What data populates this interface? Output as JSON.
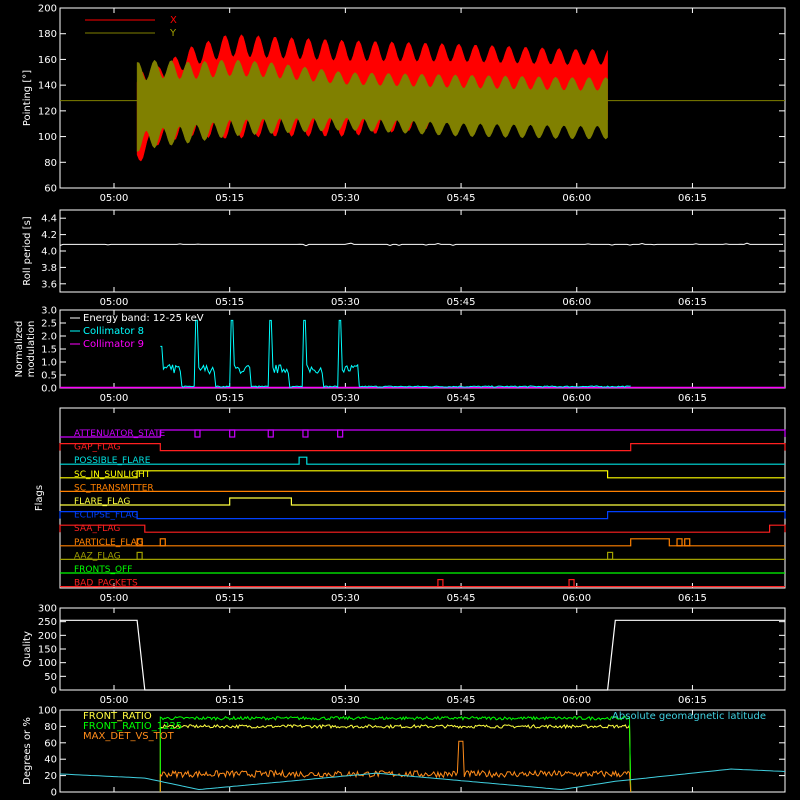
{
  "colors": {
    "background": "#000000",
    "axes": "#ffffff",
    "x_series": "#ff0000",
    "y_series": "#808000",
    "collimator8": "#00ffff",
    "collimator9": "#ff00ff",
    "energy_band": "#ffffff",
    "front_ratio": "#ffff40",
    "front_ratio_1225": "#00ff00",
    "max_det": "#ff8c1a",
    "geomag": "#40d0e0"
  },
  "time_ticks": [
    "05:00",
    "05:15",
    "05:30",
    "05:45",
    "06:00",
    "06:15"
  ],
  "chart_data": [
    {
      "type": "line",
      "ylabel": "Pointing [°]",
      "ylim": [
        60,
        200
      ],
      "yticks": [
        "60",
        "80",
        "100",
        "120",
        "140",
        "160",
        "180",
        "200"
      ],
      "legend": [
        "X",
        "Y"
      ],
      "legend_placement": "top-left",
      "series": [
        {
          "name": "X",
          "color": "#ff0000",
          "x": [
            "05:03",
            "05:06",
            "05:10",
            "05:15",
            "05:20",
            "05:30",
            "05:45",
            "06:00",
            "06:04"
          ],
          "upper": [
            150,
            155,
            170,
            180,
            178,
            175,
            172,
            168,
            168
          ],
          "lower": [
            78,
            95,
            100,
            98,
            100,
            100,
            108,
            110,
            112
          ]
        },
        {
          "name": "Y",
          "color": "#808000",
          "x": [
            "05:03",
            "05:06",
            "05:10",
            "05:15",
            "05:20",
            "05:30",
            "05:45",
            "06:00",
            "06:04"
          ],
          "upper": [
            158,
            160,
            158,
            160,
            158,
            150,
            148,
            146,
            146
          ],
          "lower": [
            88,
            92,
            95,
            100,
            102,
            105,
            100,
            98,
            98
          ]
        },
        {
          "name": "",
          "color": "#808000",
          "x": [
            "04:53",
            "06:27"
          ],
          "values": [
            128,
            128
          ]
        }
      ]
    },
    {
      "type": "line",
      "ylabel": "Roll period [s]",
      "ylim": [
        3.5,
        4.5
      ],
      "yticks": [
        "3.6",
        "3.8",
        "4.0",
        "4.2",
        "4.4"
      ],
      "series": [
        {
          "name": "",
          "x": [
            "04:53",
            "06:27"
          ],
          "values": [
            4.08,
            4.08
          ]
        }
      ]
    },
    {
      "type": "line",
      "ylabel": "Normalized modulation",
      "ylim": [
        0,
        3
      ],
      "yticks": [
        "0.0",
        "0.5",
        "1.0",
        "1.5",
        "2.0",
        "2.5",
        "3.0"
      ],
      "legend": [
        "Energy band: 12-25 keV",
        "Collimator 8",
        "Collimator 9"
      ],
      "baseline": 0.03,
      "spikes": [
        {
          "t": "05:06",
          "height": 1.6
        },
        {
          "t": "05:10.5",
          "height": 2.6
        },
        {
          "t": "05:15",
          "height": 2.6
        },
        {
          "t": "05:20",
          "height": 2.6
        },
        {
          "t": "05:24.5",
          "height": 2.6
        },
        {
          "t": "05:29",
          "height": 2.6
        }
      ],
      "series": [
        {
          "name": "Collimator 8",
          "color": "#00ffff",
          "x_start": "05:06",
          "x_end": "06:07"
        },
        {
          "name": "Collimator 9",
          "color": "#ff00ff",
          "x_start": "04:53",
          "x_end": "06:27"
        }
      ]
    },
    {
      "type": "line",
      "ylabel": "Flags",
      "flags": [
        {
          "name": "ATTENUATOR_STATE",
          "color": "#cc00ff",
          "highs": [
            [
              "05:06",
              "06:27"
            ]
          ],
          "extra": [
            "05:10.5",
            "05:15",
            "05:20",
            "05:24.5",
            "05:29"
          ]
        },
        {
          "name": "GAP_FLAG",
          "color": "#ff2020",
          "highs": [
            [
              "04:53",
              "05:06"
            ],
            [
              "06:07",
              "06:27"
            ]
          ]
        },
        {
          "name": "POSSIBLE_FLARE",
          "color": "#00e0e0",
          "highs": [
            [
              "05:24",
              "05:25"
            ]
          ]
        },
        {
          "name": "SC_IN_SUNLIGHT",
          "color": "#ffff00",
          "highs": [
            [
              "05:03",
              "06:04"
            ]
          ]
        },
        {
          "name": "SC_TRANSMITTER",
          "color": "#ff8000",
          "highs": []
        },
        {
          "name": "FLARE_FLAG",
          "color": "#ffff40",
          "highs": [
            [
              "05:15",
              "05:23"
            ]
          ]
        },
        {
          "name": "ECLIPSE_FLAG",
          "color": "#0040ff",
          "highs": [
            [
              "04:53",
              "05:03"
            ],
            [
              "06:04",
              "06:27"
            ]
          ]
        },
        {
          "name": "SAA_FLAG",
          "color": "#ff2020",
          "highs": [
            [
              "04:53",
              "05:04"
            ],
            [
              "06:25",
              "06:27"
            ]
          ]
        },
        {
          "name": "PARTICLE_FLAG",
          "color": "#ff8000",
          "highs": [
            [
              "06:07",
              "06:12"
            ]
          ],
          "extra": [
            "05:03",
            "05:06",
            "06:13",
            "06:14"
          ]
        },
        {
          "name": "AAZ_FLAG",
          "color": "#a0a000",
          "highs": [],
          "extra": [
            "05:03",
            "06:04"
          ]
        },
        {
          "name": "FRONTS_OFF",
          "color": "#00ff00",
          "highs": []
        },
        {
          "name": "BAD_PACKETS",
          "color": "#ff2020",
          "highs": [],
          "extra": [
            "05:42",
            "05:59"
          ]
        }
      ]
    },
    {
      "type": "line",
      "ylabel": "Quality",
      "ylim": [
        0,
        300
      ],
      "yticks": [
        "0",
        "50",
        "100",
        "150",
        "200",
        "250",
        "300"
      ],
      "series": [
        {
          "name": "",
          "x": [
            "04:53",
            "05:03",
            "05:04",
            "06:04",
            "06:05",
            "06:27"
          ],
          "values": [
            255,
            255,
            0,
            0,
            255,
            255
          ]
        }
      ]
    },
    {
      "type": "line",
      "ylabel": "Degrees or %",
      "ylim": [
        0,
        100
      ],
      "yticks": [
        "0",
        "20",
        "40",
        "60",
        "80",
        "100"
      ],
      "legend": [
        "FRONT_RATIO",
        "FRONT_RATIO_1225",
        "MAX_DET_VS_TOT"
      ],
      "annotation": "Absolute geomagnetic latitude",
      "series": [
        {
          "name": "FRONT_RATIO",
          "color": "#ffff40",
          "x_start": "05:06",
          "x_end": "06:07",
          "level": 80
        },
        {
          "name": "FRONT_RATIO_1225",
          "color": "#00ff00",
          "x_start": "05:06",
          "x_end": "06:07",
          "level": 90
        },
        {
          "name": "MAX_DET_VS_TOT",
          "color": "#ff8c1a",
          "x_start": "05:06",
          "x_end": "06:07",
          "level": 22,
          "spike": {
            "t": "05:45",
            "value": 62
          }
        },
        {
          "name": "Absolute geomagnetic latitude",
          "color": "#40d0e0",
          "x": [
            "04:53",
            "05:04",
            "05:11",
            "05:34",
            "05:58",
            "06:05",
            "06:20",
            "06:27"
          ],
          "values": [
            22,
            17,
            3,
            23,
            3,
            13,
            28,
            25
          ]
        }
      ]
    }
  ]
}
